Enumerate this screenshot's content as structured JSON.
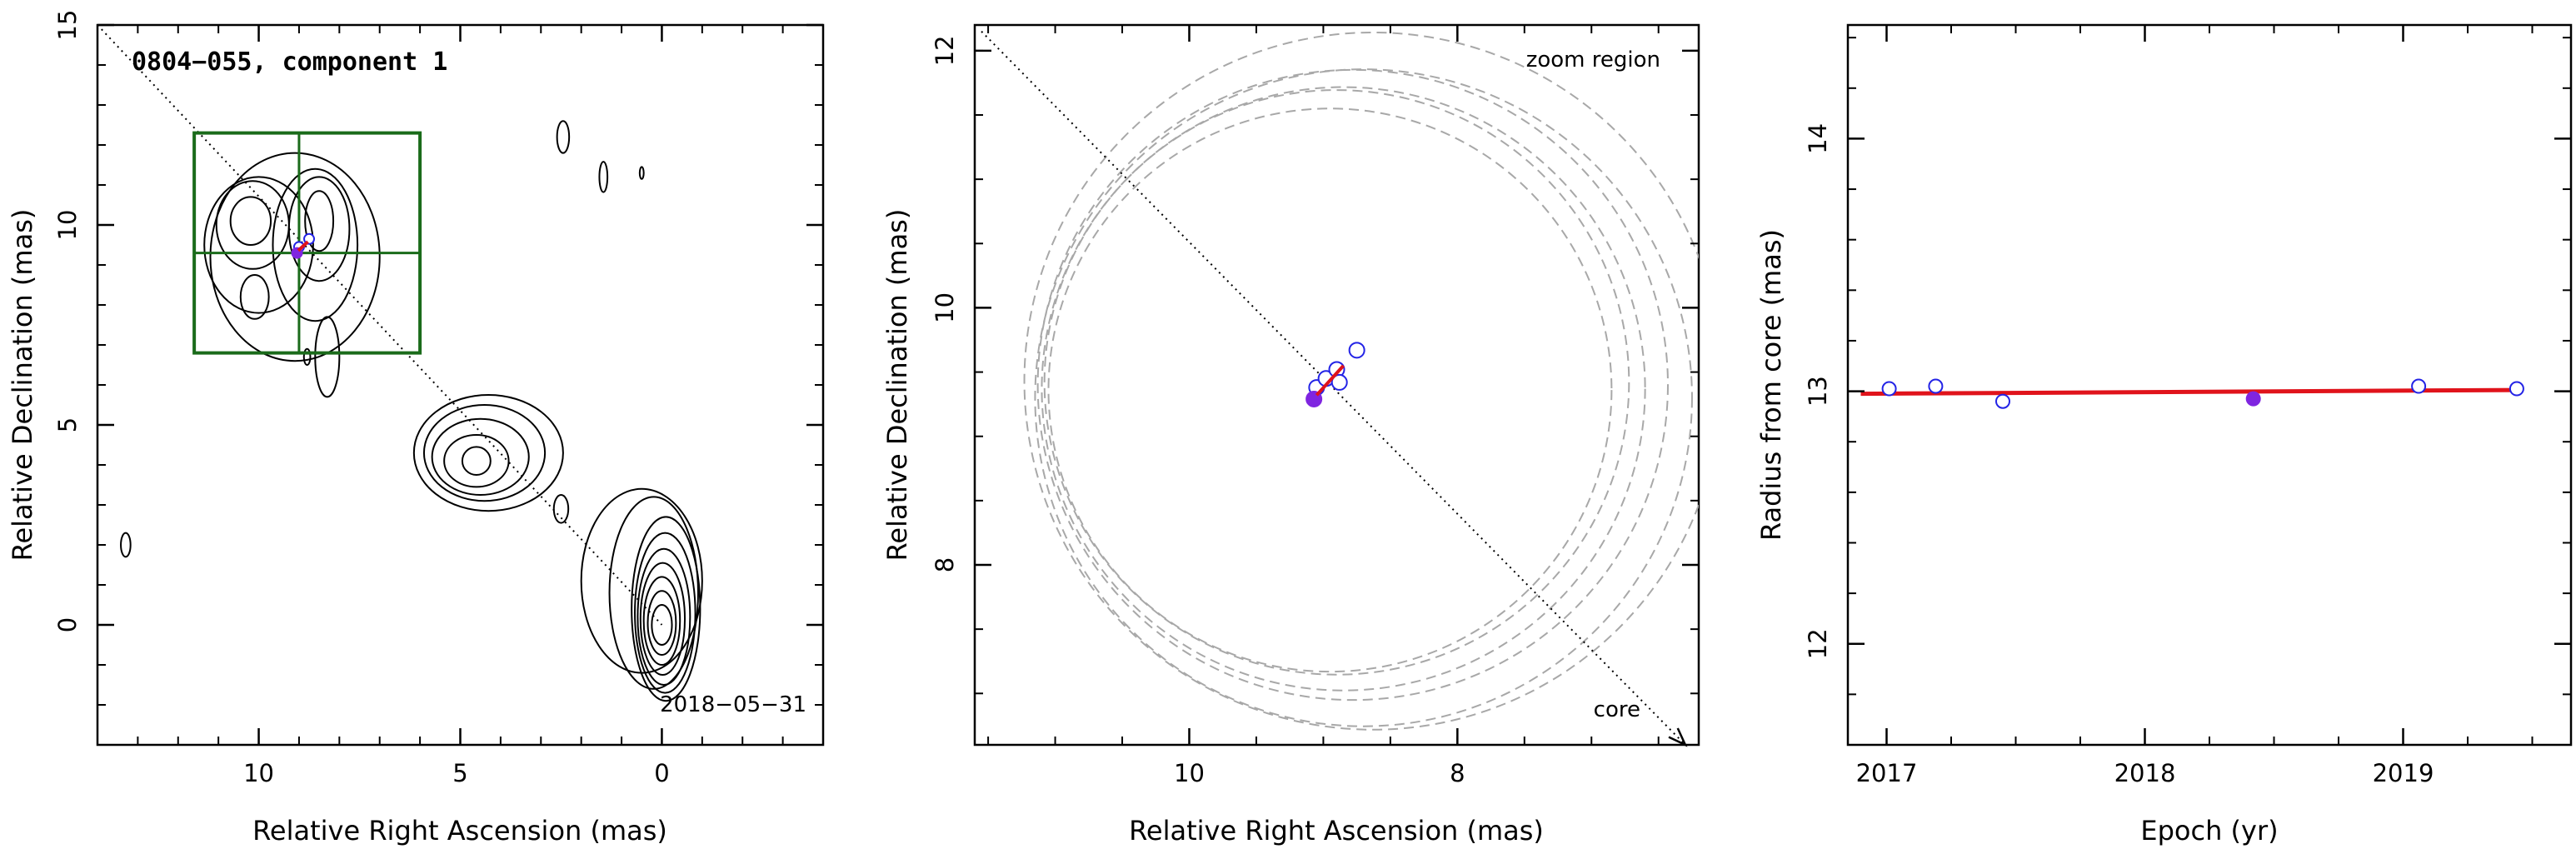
{
  "colors": {
    "frame": "#000000",
    "contour": "#000000",
    "box": "#1a6b1a",
    "fit_line": "#e0131b",
    "open_marker": "#2323e6",
    "filled_marker": "#7f25e0",
    "circle": "#a8a8a8"
  },
  "chart_data": [
    {
      "type": "contour",
      "title": "0804−055, component 1",
      "annotation": "2018−05−31",
      "xlabel": "Relative Right Ascension (mas)",
      "ylabel": "Relative Declination (mas)",
      "xlim": [
        14,
        -4
      ],
      "ylim": [
        -3,
        15
      ],
      "xticks": [
        {
          "value": 10,
          "label": "10"
        },
        {
          "value": 5,
          "label": "5"
        },
        {
          "value": 0,
          "label": "0"
        }
      ],
      "yticks": [
        {
          "value": 0,
          "label": "0"
        },
        {
          "value": 5,
          "label": "5"
        },
        {
          "value": 10,
          "label": "10"
        },
        {
          "value": 15,
          "label": "15"
        }
      ],
      "direction_line": {
        "from": [
          14,
          15
        ],
        "to": [
          0,
          0
        ]
      },
      "zoom_box": {
        "x": [
          11.6,
          6.0
        ],
        "y": [
          6.8,
          12.3
        ],
        "cross": [
          9.0,
          9.3
        ]
      },
      "fit_segment": {
        "from": [
          9.02,
          9.36
        ],
        "to": [
          8.78,
          9.58
        ]
      },
      "open_points": [
        [
          8.75,
          9.65
        ],
        [
          9.0,
          9.45
        ]
      ],
      "filled_points": [
        [
          9.05,
          9.3
        ]
      ],
      "contours": [
        {
          "cx": 0.0,
          "cy": 0.0,
          "rx": 0.25,
          "ry": 0.5
        },
        {
          "cx": 0.0,
          "cy": 0.05,
          "rx": 0.35,
          "ry": 0.8
        },
        {
          "cx": 0.0,
          "cy": 0.1,
          "rx": 0.45,
          "ry": 1.1
        },
        {
          "cx": -0.02,
          "cy": 0.15,
          "rx": 0.55,
          "ry": 1.4
        },
        {
          "cx": -0.05,
          "cy": 0.2,
          "rx": 0.65,
          "ry": 1.7
        },
        {
          "cx": -0.08,
          "cy": 0.3,
          "rx": 0.75,
          "ry": 2.0
        },
        {
          "cx": -0.1,
          "cy": 0.4,
          "rx": 0.85,
          "ry": 2.3
        },
        {
          "cx": 0.2,
          "cy": 0.8,
          "rx": 1.1,
          "ry": 2.4
        },
        {
          "cx": 0.5,
          "cy": 1.1,
          "rx": 1.5,
          "ry": 2.3
        },
        {
          "cx": 4.6,
          "cy": 4.1,
          "rx": 0.35,
          "ry": 0.35
        },
        {
          "cx": 4.6,
          "cy": 4.1,
          "rx": 0.8,
          "ry": 0.65
        },
        {
          "cx": 4.5,
          "cy": 4.2,
          "rx": 1.2,
          "ry": 0.95
        },
        {
          "cx": 4.4,
          "cy": 4.3,
          "rx": 1.5,
          "ry": 1.2
        },
        {
          "cx": 4.3,
          "cy": 4.3,
          "rx": 1.85,
          "ry": 1.45
        },
        {
          "cx": 2.5,
          "cy": 2.9,
          "rx": 0.18,
          "ry": 0.35
        },
        {
          "cx": 13.3,
          "cy": 2.0,
          "rx": 0.12,
          "ry": 0.3
        },
        {
          "cx": 2.45,
          "cy": 12.2,
          "rx": 0.15,
          "ry": 0.4
        },
        {
          "cx": 1.45,
          "cy": 11.2,
          "rx": 0.1,
          "ry": 0.38
        },
        {
          "cx": 0.5,
          "cy": 11.3,
          "rx": 0.05,
          "ry": 0.15
        },
        {
          "cx": 8.8,
          "cy": 6.7,
          "rx": 0.08,
          "ry": 0.2
        },
        {
          "cx": 10.2,
          "cy": 10.1,
          "rx": 0.5,
          "ry": 0.6
        },
        {
          "cx": 10.15,
          "cy": 10.0,
          "rx": 0.9,
          "ry": 1.1
        },
        {
          "cx": 10.0,
          "cy": 9.5,
          "rx": 1.35,
          "ry": 1.7
        },
        {
          "cx": 8.5,
          "cy": 10.1,
          "rx": 0.35,
          "ry": 0.75
        },
        {
          "cx": 8.5,
          "cy": 9.9,
          "rx": 0.75,
          "ry": 1.3
        },
        {
          "cx": 8.6,
          "cy": 9.5,
          "rx": 1.05,
          "ry": 1.9
        },
        {
          "cx": 10.1,
          "cy": 8.2,
          "rx": 0.35,
          "ry": 0.55
        },
        {
          "cx": 9.1,
          "cy": 9.2,
          "rx": 2.1,
          "ry": 2.6
        },
        {
          "cx": 8.3,
          "cy": 6.7,
          "rx": 0.3,
          "ry": 1.0
        }
      ]
    },
    {
      "type": "scatter",
      "annotations": [
        "zoom region",
        "core"
      ],
      "xlabel": "Relative Right Ascension (mas)",
      "ylabel": "Relative Declination (mas)",
      "xlim": [
        11.6,
        6.2
      ],
      "ylim": [
        6.6,
        12.2
      ],
      "xticks": [
        {
          "value": 10,
          "label": "10"
        },
        {
          "value": 8,
          "label": "8"
        }
      ],
      "yticks": [
        {
          "value": 8,
          "label": "8"
        },
        {
          "value": 10,
          "label": "10"
        },
        {
          "value": 12,
          "label": "12"
        }
      ],
      "direction_line": {
        "from": [
          11.55,
          12.15
        ],
        "to": [
          6.3,
          6.6
        ]
      },
      "fit_segment": {
        "from": [
          9.05,
          9.32
        ],
        "to": [
          8.85,
          9.55
        ]
      },
      "open_points": [
        [
          9.05,
          9.38
        ],
        [
          8.98,
          9.45
        ],
        [
          8.9,
          9.52
        ],
        [
          8.88,
          9.42
        ],
        [
          8.75,
          9.67
        ]
      ],
      "filled_points": [
        [
          9.07,
          9.29
        ]
      ],
      "circles": [
        {
          "cx": 8.63,
          "cy": 9.43,
          "r": 2.6
        },
        {
          "cx": 8.7,
          "cy": 9.3,
          "r": 2.45
        },
        {
          "cx": 8.78,
          "cy": 9.4,
          "r": 2.35
        },
        {
          "cx": 8.85,
          "cy": 9.37,
          "r": 2.25
        },
        {
          "cx": 8.9,
          "cy": 9.42,
          "r": 2.18
        },
        {
          "cx": 8.95,
          "cy": 9.36,
          "r": 2.1
        }
      ]
    },
    {
      "type": "scatter",
      "xlabel": "Epoch (yr)",
      "ylabel": "Radius from core (mas)",
      "xlim": [
        2016.85,
        2019.65
      ],
      "ylim": [
        11.6,
        14.45
      ],
      "xticks": [
        {
          "value": 2017,
          "label": "2017"
        },
        {
          "value": 2018,
          "label": "2018"
        },
        {
          "value": 2019,
          "label": "2019"
        }
      ],
      "yticks": [
        {
          "value": 12,
          "label": "12"
        },
        {
          "value": 13,
          "label": "13"
        },
        {
          "value": 14,
          "label": "14"
        }
      ],
      "fit_line": {
        "x": [
          2016.9,
          2019.45
        ],
        "y": [
          12.99,
          13.005
        ]
      },
      "open_points": [
        [
          2017.01,
          13.01
        ],
        [
          2017.19,
          13.02
        ],
        [
          2017.45,
          12.96
        ],
        [
          2019.06,
          13.02
        ],
        [
          2019.44,
          13.01
        ]
      ],
      "filled_points": [
        [
          2018.42,
          12.97
        ]
      ]
    }
  ]
}
